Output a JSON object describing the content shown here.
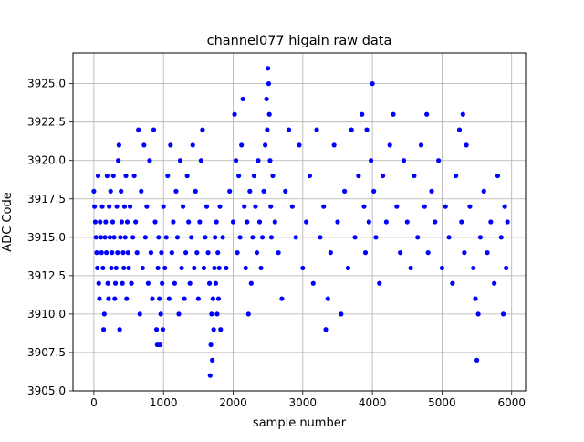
{
  "chart_data": {
    "type": "scatter",
    "title": "channel077 higain raw data",
    "xlabel": "sample number",
    "ylabel": "ADC Code",
    "xlim": [
      -300,
      6200
    ],
    "ylim": [
      3905.0,
      3927.0
    ],
    "x_ticks": [
      0,
      1000,
      2000,
      3000,
      4000,
      5000,
      6000
    ],
    "x_tick_labels": [
      "0",
      "1000",
      "2000",
      "3000",
      "4000",
      "5000",
      "6000"
    ],
    "y_ticks": [
      3905.0,
      3907.5,
      3910.0,
      3912.5,
      3915.0,
      3917.5,
      3920.0,
      3922.5,
      3925.0
    ],
    "y_tick_labels": [
      "3905.0",
      "3907.5",
      "3910.0",
      "3912.5",
      "3915.0",
      "3917.5",
      "3920.0",
      "3922.5",
      "3925.0"
    ],
    "grid": true,
    "marker_color": "#0000ff",
    "series": [
      {
        "points": [
          [
            0,
            3918
          ],
          [
            10,
            3917
          ],
          [
            20,
            3916
          ],
          [
            30,
            3915
          ],
          [
            40,
            3914
          ],
          [
            50,
            3913
          ],
          [
            60,
            3919
          ],
          [
            70,
            3912
          ],
          [
            80,
            3911
          ],
          [
            90,
            3916
          ],
          [
            100,
            3915
          ],
          [
            110,
            3914
          ],
          [
            120,
            3917
          ],
          [
            130,
            3913
          ],
          [
            140,
            3909
          ],
          [
            150,
            3910
          ],
          [
            160,
            3915
          ],
          [
            170,
            3916
          ],
          [
            180,
            3914
          ],
          [
            190,
            3919
          ],
          [
            200,
            3912
          ],
          [
            210,
            3911
          ],
          [
            220,
            3917
          ],
          [
            230,
            3915
          ],
          [
            240,
            3918
          ],
          [
            250,
            3913
          ],
          [
            260,
            3914
          ],
          [
            270,
            3916
          ],
          [
            280,
            3919
          ],
          [
            290,
            3915
          ],
          [
            300,
            3911
          ],
          [
            310,
            3912
          ],
          [
            320,
            3913
          ],
          [
            330,
            3917
          ],
          [
            340,
            3914
          ],
          [
            350,
            3920
          ],
          [
            360,
            3921
          ],
          [
            370,
            3909
          ],
          [
            380,
            3915
          ],
          [
            390,
            3918
          ],
          [
            400,
            3916
          ],
          [
            410,
            3912
          ],
          [
            420,
            3914
          ],
          [
            430,
            3913
          ],
          [
            440,
            3917
          ],
          [
            450,
            3915
          ],
          [
            460,
            3919
          ],
          [
            470,
            3911
          ],
          [
            480,
            3916
          ],
          [
            490,
            3914
          ],
          [
            500,
            3913
          ],
          [
            520,
            3917
          ],
          [
            540,
            3912
          ],
          [
            560,
            3915
          ],
          [
            580,
            3919
          ],
          [
            600,
            3916
          ],
          [
            620,
            3914
          ],
          [
            640,
            3922
          ],
          [
            660,
            3910
          ],
          [
            680,
            3918
          ],
          [
            700,
            3913
          ],
          [
            720,
            3921
          ],
          [
            740,
            3915
          ],
          [
            760,
            3917
          ],
          [
            780,
            3912
          ],
          [
            800,
            3920
          ],
          [
            820,
            3914
          ],
          [
            840,
            3911
          ],
          [
            860,
            3922
          ],
          [
            880,
            3916
          ],
          [
            900,
            3909
          ],
          [
            910,
            3908
          ],
          [
            920,
            3913
          ],
          [
            930,
            3915
          ],
          [
            940,
            3911
          ],
          [
            950,
            3908
          ],
          [
            960,
            3910
          ],
          [
            970,
            3914
          ],
          [
            980,
            3912
          ],
          [
            990,
            3909
          ],
          [
            1000,
            3917
          ],
          [
            1020,
            3913
          ],
          [
            1040,
            3915
          ],
          [
            1060,
            3919
          ],
          [
            1080,
            3911
          ],
          [
            1100,
            3921
          ],
          [
            1120,
            3914
          ],
          [
            1140,
            3916
          ],
          [
            1160,
            3912
          ],
          [
            1180,
            3918
          ],
          [
            1200,
            3915
          ],
          [
            1220,
            3910
          ],
          [
            1240,
            3920
          ],
          [
            1260,
            3913
          ],
          [
            1280,
            3917
          ],
          [
            1300,
            3911
          ],
          [
            1320,
            3914
          ],
          [
            1340,
            3919
          ],
          [
            1360,
            3916
          ],
          [
            1380,
            3912
          ],
          [
            1400,
            3915
          ],
          [
            1420,
            3921
          ],
          [
            1440,
            3913
          ],
          [
            1460,
            3918
          ],
          [
            1480,
            3914
          ],
          [
            1500,
            3911
          ],
          [
            1520,
            3916
          ],
          [
            1540,
            3920
          ],
          [
            1560,
            3922
          ],
          [
            1580,
            3913
          ],
          [
            1600,
            3915
          ],
          [
            1620,
            3917
          ],
          [
            1640,
            3914
          ],
          [
            1660,
            3912
          ],
          [
            1670,
            3906
          ],
          [
            1680,
            3908
          ],
          [
            1690,
            3910
          ],
          [
            1700,
            3907
          ],
          [
            1710,
            3911
          ],
          [
            1720,
            3909
          ],
          [
            1730,
            3913
          ],
          [
            1740,
            3915
          ],
          [
            1750,
            3912
          ],
          [
            1760,
            3916
          ],
          [
            1770,
            3910
          ],
          [
            1780,
            3914
          ],
          [
            1790,
            3911
          ],
          [
            1800,
            3913
          ],
          [
            1810,
            3917
          ],
          [
            1820,
            3909
          ],
          [
            1850,
            3915
          ],
          [
            1900,
            3913
          ],
          [
            1950,
            3918
          ],
          [
            2000,
            3916
          ],
          [
            2020,
            3923
          ],
          [
            2040,
            3920
          ],
          [
            2060,
            3914
          ],
          [
            2080,
            3919
          ],
          [
            2100,
            3915
          ],
          [
            2120,
            3921
          ],
          [
            2140,
            3924
          ],
          [
            2160,
            3917
          ],
          [
            2180,
            3913
          ],
          [
            2200,
            3916
          ],
          [
            2220,
            3910
          ],
          [
            2240,
            3918
          ],
          [
            2260,
            3912
          ],
          [
            2280,
            3915
          ],
          [
            2300,
            3919
          ],
          [
            2320,
            3917
          ],
          [
            2340,
            3914
          ],
          [
            2360,
            3920
          ],
          [
            2380,
            3916
          ],
          [
            2400,
            3913
          ],
          [
            2420,
            3915
          ],
          [
            2440,
            3918
          ],
          [
            2460,
            3921
          ],
          [
            2480,
            3924
          ],
          [
            2490,
            3922
          ],
          [
            2500,
            3926
          ],
          [
            2510,
            3925
          ],
          [
            2520,
            3923
          ],
          [
            2530,
            3920
          ],
          [
            2540,
            3917
          ],
          [
            2550,
            3915
          ],
          [
            2570,
            3919
          ],
          [
            2600,
            3916
          ],
          [
            2650,
            3914
          ],
          [
            2700,
            3911
          ],
          [
            2750,
            3918
          ],
          [
            2800,
            3922
          ],
          [
            2850,
            3917
          ],
          [
            2900,
            3915
          ],
          [
            2950,
            3921
          ],
          [
            3000,
            3913
          ],
          [
            3050,
            3916
          ],
          [
            3100,
            3919
          ],
          [
            3150,
            3912
          ],
          [
            3200,
            3922
          ],
          [
            3250,
            3915
          ],
          [
            3300,
            3917
          ],
          [
            3330,
            3909
          ],
          [
            3360,
            3911
          ],
          [
            3400,
            3914
          ],
          [
            3450,
            3921
          ],
          [
            3500,
            3916
          ],
          [
            3550,
            3910
          ],
          [
            3600,
            3918
          ],
          [
            3650,
            3913
          ],
          [
            3700,
            3922
          ],
          [
            3750,
            3915
          ],
          [
            3800,
            3919
          ],
          [
            3850,
            3923
          ],
          [
            3880,
            3917
          ],
          [
            3900,
            3914
          ],
          [
            3920,
            3922
          ],
          [
            3950,
            3916
          ],
          [
            3980,
            3920
          ],
          [
            4000,
            3925
          ],
          [
            4020,
            3918
          ],
          [
            4050,
            3915
          ],
          [
            4100,
            3912
          ],
          [
            4150,
            3919
          ],
          [
            4200,
            3916
          ],
          [
            4250,
            3921
          ],
          [
            4300,
            3923
          ],
          [
            4350,
            3917
          ],
          [
            4400,
            3914
          ],
          [
            4450,
            3920
          ],
          [
            4500,
            3916
          ],
          [
            4550,
            3913
          ],
          [
            4600,
            3919
          ],
          [
            4650,
            3915
          ],
          [
            4700,
            3921
          ],
          [
            4750,
            3917
          ],
          [
            4780,
            3923
          ],
          [
            4800,
            3914
          ],
          [
            4850,
            3918
          ],
          [
            4900,
            3916
          ],
          [
            4950,
            3920
          ],
          [
            5000,
            3913
          ],
          [
            5050,
            3917
          ],
          [
            5100,
            3915
          ],
          [
            5150,
            3912
          ],
          [
            5200,
            3919
          ],
          [
            5250,
            3922
          ],
          [
            5280,
            3916
          ],
          [
            5300,
            3923
          ],
          [
            5320,
            3914
          ],
          [
            5350,
            3921
          ],
          [
            5400,
            3917
          ],
          [
            5450,
            3913
          ],
          [
            5480,
            3911
          ],
          [
            5500,
            3907
          ],
          [
            5520,
            3910
          ],
          [
            5550,
            3915
          ],
          [
            5600,
            3918
          ],
          [
            5650,
            3914
          ],
          [
            5700,
            3916
          ],
          [
            5750,
            3912
          ],
          [
            5800,
            3919
          ],
          [
            5850,
            3915
          ],
          [
            5880,
            3910
          ],
          [
            5900,
            3917
          ],
          [
            5920,
            3913
          ],
          [
            5940,
            3916
          ]
        ]
      }
    ]
  }
}
